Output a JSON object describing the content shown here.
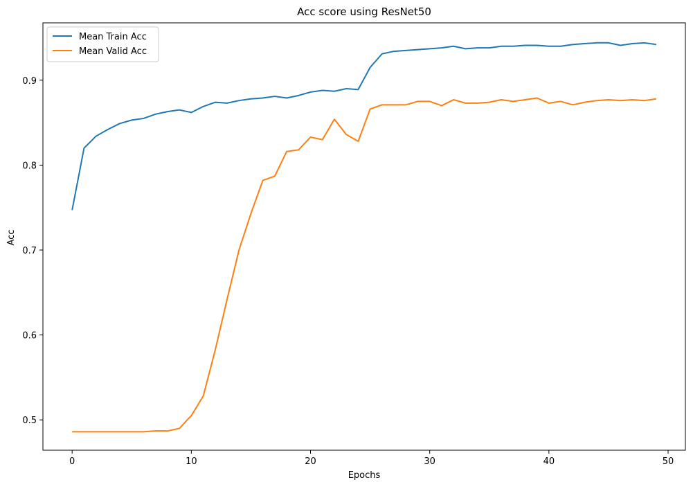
{
  "colors": {
    "background": "#ffffff",
    "axis": "#000000",
    "series_train": "#1f77b4",
    "series_valid": "#ff7f0e",
    "legend_border": "#cccccc"
  },
  "chart_data": {
    "type": "line",
    "title": "Acc score using ResNet50",
    "xlabel": "Epochs",
    "ylabel": "Acc",
    "xlim": [
      -2.45,
      51.45
    ],
    "ylim": [
      0.4643,
      0.9675
    ],
    "xticks": [
      0,
      10,
      20,
      30,
      40,
      50
    ],
    "yticks": [
      0.5,
      0.6,
      0.7,
      0.8,
      0.9
    ],
    "xtick_labels": [
      "0",
      "10",
      "20",
      "30",
      "40",
      "50"
    ],
    "ytick_labels": [
      "0.5",
      "0.6",
      "0.7",
      "0.8",
      "0.9"
    ],
    "grid": false,
    "legend_position": "top-left",
    "x": [
      0,
      1,
      2,
      3,
      4,
      5,
      6,
      7,
      8,
      9,
      10,
      11,
      12,
      13,
      14,
      15,
      16,
      17,
      18,
      19,
      20,
      21,
      22,
      23,
      24,
      25,
      26,
      27,
      28,
      29,
      30,
      31,
      32,
      33,
      34,
      35,
      36,
      37,
      38,
      39,
      40,
      41,
      42,
      43,
      44,
      45,
      46,
      47,
      48,
      49
    ],
    "series": [
      {
        "name": "Mean Train Acc",
        "color": "#1f77b4",
        "values": [
          0.747,
          0.82,
          0.834,
          0.842,
          0.849,
          0.853,
          0.855,
          0.86,
          0.863,
          0.865,
          0.862,
          0.869,
          0.874,
          0.873,
          0.876,
          0.878,
          0.879,
          0.881,
          0.879,
          0.882,
          0.886,
          0.888,
          0.887,
          0.89,
          0.889,
          0.915,
          0.931,
          0.934,
          0.935,
          0.936,
          0.937,
          0.938,
          0.94,
          0.937,
          0.938,
          0.938,
          0.94,
          0.94,
          0.941,
          0.941,
          0.94,
          0.94,
          0.942,
          0.943,
          0.944,
          0.944,
          0.941,
          0.943,
          0.944,
          0.942
        ]
      },
      {
        "name": "Mean Valid Acc",
        "color": "#ff7f0e",
        "values": [
          0.486,
          0.486,
          0.486,
          0.486,
          0.486,
          0.486,
          0.486,
          0.487,
          0.487,
          0.49,
          0.505,
          0.528,
          0.582,
          0.642,
          0.7,
          0.743,
          0.782,
          0.787,
          0.816,
          0.818,
          0.833,
          0.83,
          0.854,
          0.836,
          0.828,
          0.866,
          0.871,
          0.871,
          0.871,
          0.875,
          0.875,
          0.87,
          0.877,
          0.873,
          0.873,
          0.874,
          0.877,
          0.875,
          0.877,
          0.879,
          0.873,
          0.875,
          0.871,
          0.874,
          0.876,
          0.877,
          0.876,
          0.877,
          0.876,
          0.878
        ]
      }
    ]
  }
}
